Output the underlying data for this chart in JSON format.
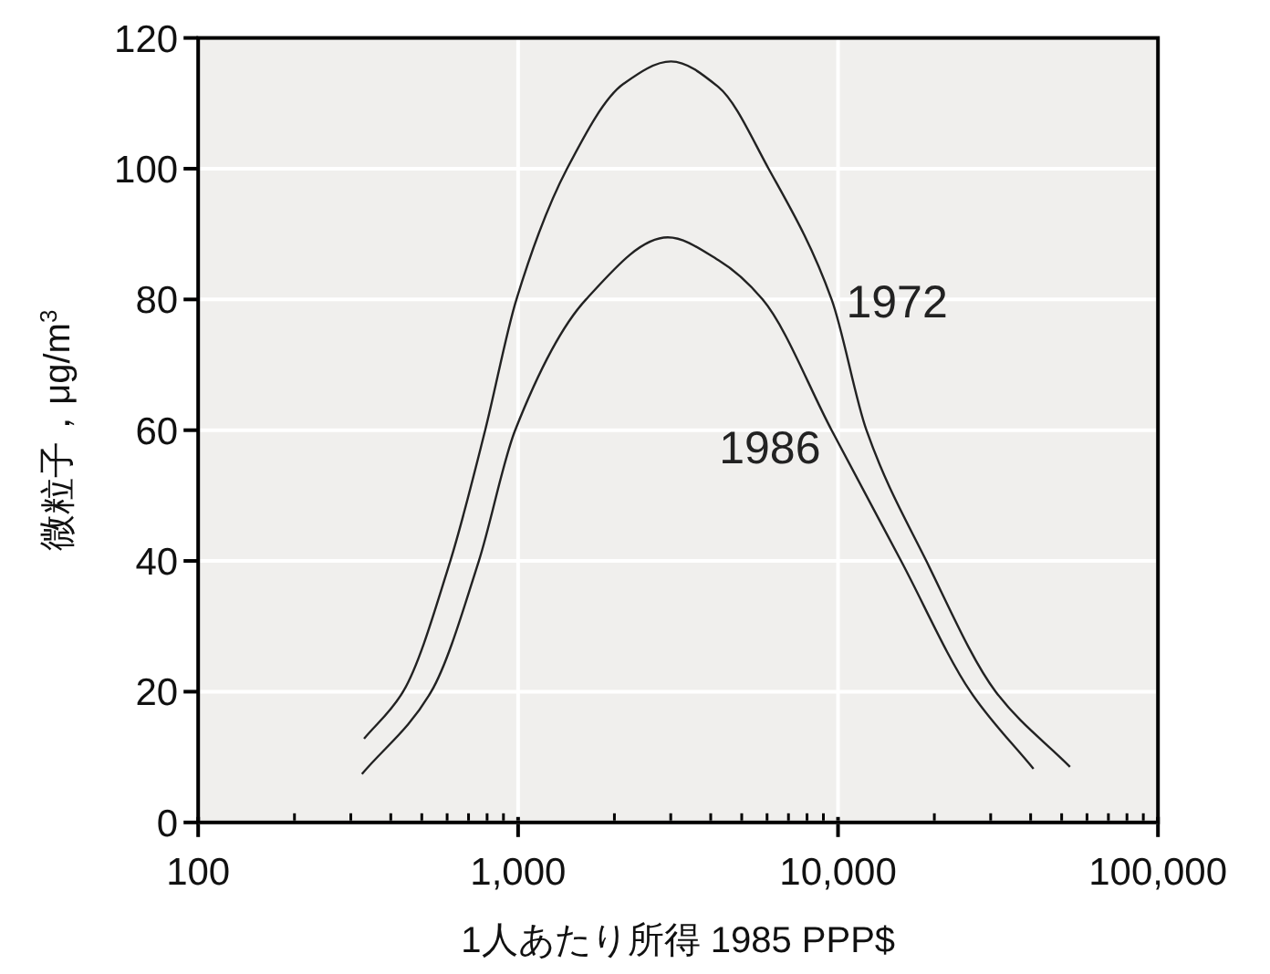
{
  "chart_data": {
    "type": "line",
    "xlabel": "1人あたり所得 1985 PPP$",
    "ylabel": "微粒子，μg/m$^{3}$",
    "log": "x",
    "grid": true,
    "legend": false,
    "marker": "none",
    "line_style": "solid",
    "xlim": [
      100,
      100000
    ],
    "xticks": [
      100,
      {
        "value": 1000,
        "label": "1,000"
      },
      {
        "value": 10000,
        "label": "10,000"
      },
      {
        "value": 100000,
        "label": "100,000"
      }
    ],
    "ylim": [
      0,
      120
    ],
    "yticks": [
      0,
      20,
      40,
      60,
      80,
      100,
      120
    ],
    "series": [
      {
        "name": "1972",
        "color": "#222222",
        "x": [
          330,
          437,
          614,
          789,
          988,
          1422,
          2138,
          3006,
          4227,
          6067,
          9550,
          12270,
          18880,
          31100,
          53100
        ],
        "values": [
          12.8,
          20,
          40,
          60,
          80,
          100,
          113,
          116.4,
          112.5,
          100,
          80,
          60,
          40,
          20,
          8.5
        ]
      },
      {
        "name": "1986",
        "color": "#222222",
        "x": [
          325,
          535,
          754,
          979,
          1630,
          2938,
          4227,
          5810,
          9550,
          15740,
          25940,
          40830
        ],
        "values": [
          7.4,
          20,
          40,
          60,
          80,
          89.5,
          86,
          80,
          60,
          40,
          20,
          8.2
        ]
      }
    ]
  }
}
